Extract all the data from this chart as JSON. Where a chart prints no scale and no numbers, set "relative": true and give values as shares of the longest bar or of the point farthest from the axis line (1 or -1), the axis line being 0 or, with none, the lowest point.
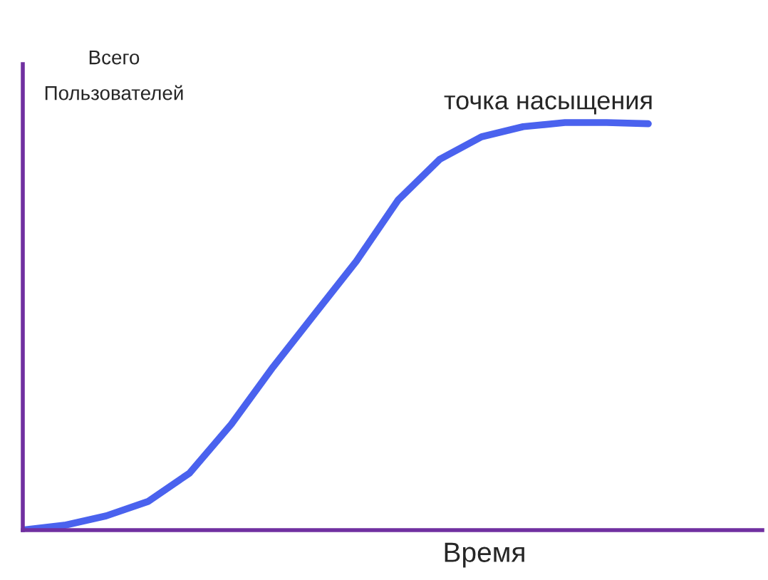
{
  "chart_data": {
    "type": "line",
    "relative": true,
    "xlabel": "Время",
    "ylabel": "Всего\nПользователей",
    "annotations": [
      "точка насыщения"
    ],
    "categories": [
      null,
      null,
      null,
      null,
      null,
      null,
      null,
      null,
      null,
      null,
      null,
      null,
      null,
      null,
      null,
      null
    ],
    "series": [
      {
        "color": "#4a62ee",
        "values": [
          0,
          0.012,
          0.035,
          0.07,
          0.14,
          0.26,
          0.4,
          0.53,
          0.66,
          0.81,
          0.91,
          0.965,
          0.99,
          1.0,
          1.0,
          0.997
        ]
      }
    ],
    "marker": "none",
    "line_style": "solid"
  }
}
